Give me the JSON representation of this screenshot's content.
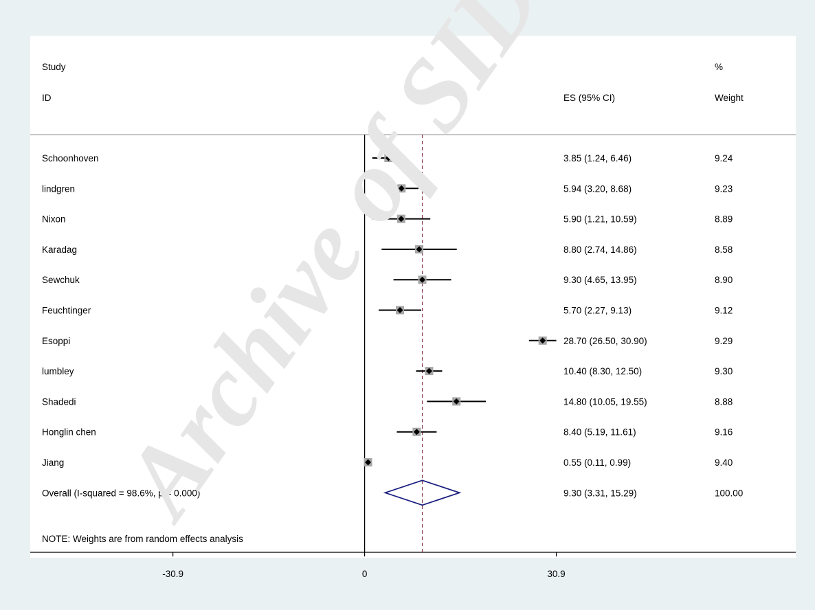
{
  "chart_data": {
    "type": "forest",
    "header": {
      "study_line1": "Study",
      "study_line2": "ID",
      "es_header": "ES (95% CI)",
      "weight_line1": "%",
      "weight_line2": "Weight"
    },
    "studies": [
      {
        "name": "Schoonhoven",
        "es": 3.85,
        "lo": 1.24,
        "hi": 6.46,
        "es_text": "3.85 (1.24, 6.46)",
        "weight": "9.24"
      },
      {
        "name": "lindgren",
        "es": 5.94,
        "lo": 3.2,
        "hi": 8.68,
        "es_text": "5.94 (3.20, 8.68)",
        "weight": "9.23"
      },
      {
        "name": "Nixon",
        "es": 5.9,
        "lo": 1.21,
        "hi": 10.59,
        "es_text": "5.90 (1.21, 10.59)",
        "weight": "8.89"
      },
      {
        "name": "Karadag",
        "es": 8.8,
        "lo": 2.74,
        "hi": 14.86,
        "es_text": "8.80 (2.74, 14.86)",
        "weight": "8.58"
      },
      {
        "name": "Sewchuk",
        "es": 9.3,
        "lo": 4.65,
        "hi": 13.95,
        "es_text": "9.30 (4.65, 13.95)",
        "weight": "8.90"
      },
      {
        "name": "Feuchtinger",
        "es": 5.7,
        "lo": 2.27,
        "hi": 9.13,
        "es_text": "5.70 (2.27, 9.13)",
        "weight": "9.12"
      },
      {
        "name": "Esoppi",
        "es": 28.7,
        "lo": 26.5,
        "hi": 30.9,
        "es_text": "28.70 (26.50, 30.90)",
        "weight": "9.29"
      },
      {
        "name": "lumbley",
        "es": 10.4,
        "lo": 8.3,
        "hi": 12.5,
        "es_text": "10.40 (8.30, 12.50)",
        "weight": "9.30"
      },
      {
        "name": "Shadedi",
        "es": 14.8,
        "lo": 10.05,
        "hi": 19.55,
        "es_text": "14.80 (10.05, 19.55)",
        "weight": "8.88"
      },
      {
        "name": "Honglin chen",
        "es": 8.4,
        "lo": 5.19,
        "hi": 11.61,
        "es_text": "8.40 (5.19, 11.61)",
        "weight": "9.16"
      },
      {
        "name": "Jiang",
        "es": 0.55,
        "lo": 0.11,
        "hi": 0.99,
        "es_text": "0.55 (0.11, 0.99)",
        "weight": "9.40"
      }
    ],
    "overall": {
      "label": "Overall  (I-squared = 98.6%, p = 0.000)",
      "es": 9.3,
      "lo": 3.31,
      "hi": 15.29,
      "es_text": "9.30 (3.31, 15.29)",
      "weight": "100.00"
    },
    "note": "NOTE: Weights are from random effects analysis",
    "x_ticks": [
      {
        "value": -30.9,
        "label": "-30.9"
      },
      {
        "value": 0,
        "label": "0"
      },
      {
        "value": 30.9,
        "label": "30.9"
      }
    ],
    "xlim": [
      -53.9,
      69.5
    ],
    "null_line": 0,
    "colors": {
      "background": "#eaf1f3",
      "ci_line": "#000000",
      "weight_box": "#a6a6a6",
      "point": "#000000",
      "overall_diamond": "#1c2080",
      "overall_line": "#8b3a4a"
    }
  },
  "watermark": "Archive of SID"
}
